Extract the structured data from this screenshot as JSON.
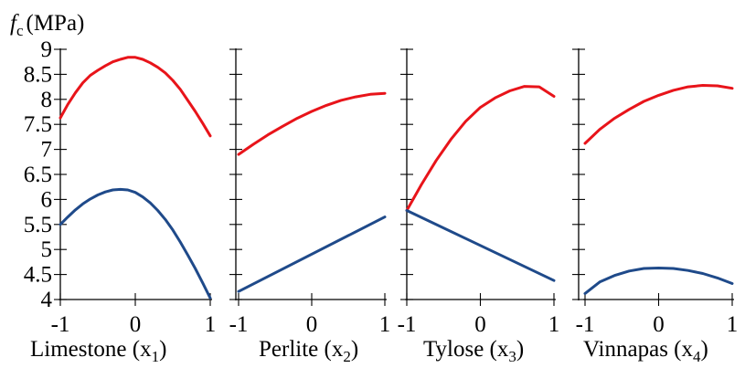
{
  "chart_data": {
    "type": "line",
    "ylabel_prefix": "f",
    "ylabel_sub": "c",
    "ylabel_unit": "(MPa)",
    "ylim": [
      4,
      9
    ],
    "yticks": [
      "4",
      "4.5",
      "5",
      "5.5",
      "6",
      "6.5",
      "7",
      "7.5",
      "8",
      "8.5",
      "9"
    ],
    "xlim": [
      -1,
      1
    ],
    "xticks": [
      "-1",
      "0",
      "1"
    ],
    "grid": false,
    "series_colors": [
      "#e8141a",
      "#1f4a8a"
    ],
    "panels": [
      {
        "title": "Limestone (x",
        "sub": "1",
        "title_end": ")",
        "series": [
          {
            "color": "red",
            "x": [
              -1,
              -0.9,
              -0.8,
              -0.7,
              -0.6,
              -0.5,
              -0.4,
              -0.3,
              -0.2,
              -0.1,
              0,
              0.1,
              0.2,
              0.3,
              0.4,
              0.5,
              0.6,
              0.7,
              0.8,
              0.9,
              1
            ],
            "y": [
              7.63,
              7.9,
              8.13,
              8.33,
              8.48,
              8.58,
              8.67,
              8.75,
              8.8,
              8.84,
              8.84,
              8.8,
              8.73,
              8.64,
              8.53,
              8.38,
              8.2,
              7.98,
              7.76,
              7.52,
              7.27
            ]
          },
          {
            "color": "blue",
            "x": [
              -1,
              -0.9,
              -0.8,
              -0.7,
              -0.6,
              -0.5,
              -0.4,
              -0.3,
              -0.2,
              -0.1,
              0,
              0.1,
              0.2,
              0.3,
              0.4,
              0.5,
              0.6,
              0.7,
              0.8,
              0.9,
              1
            ],
            "y": [
              5.5,
              5.65,
              5.79,
              5.91,
              6.01,
              6.09,
              6.15,
              6.19,
              6.2,
              6.19,
              6.14,
              6.05,
              5.93,
              5.78,
              5.6,
              5.39,
              5.15,
              4.89,
              4.62,
              4.33,
              4.03
            ]
          }
        ]
      },
      {
        "title": "Perlite (x",
        "sub": "2",
        "title_end": ")",
        "series": [
          {
            "color": "red",
            "x": [
              -1,
              -0.8,
              -0.6,
              -0.4,
              -0.2,
              0,
              0.2,
              0.4,
              0.6,
              0.8,
              1
            ],
            "y": [
              6.9,
              7.1,
              7.29,
              7.46,
              7.62,
              7.76,
              7.88,
              7.98,
              8.05,
              8.1,
              8.12
            ]
          },
          {
            "color": "blue",
            "x": [
              -1,
              1
            ],
            "y": [
              4.16,
              5.65
            ]
          }
        ]
      },
      {
        "title": "Tylose (x",
        "sub": "3",
        "title_end": ")",
        "series": [
          {
            "color": "red",
            "x": [
              -1,
              -0.8,
              -0.6,
              -0.4,
              -0.2,
              0,
              0.2,
              0.4,
              0.6,
              0.8,
              1
            ],
            "y": [
              5.78,
              6.3,
              6.78,
              7.2,
              7.56,
              7.84,
              8.03,
              8.17,
              8.26,
              8.25,
              8.06
            ]
          },
          {
            "color": "blue",
            "x": [
              -1,
              1
            ],
            "y": [
              5.78,
              4.38
            ]
          }
        ]
      },
      {
        "title": "Vinnapas (x",
        "sub": "4",
        "title_end": ")",
        "series": [
          {
            "color": "red",
            "x": [
              -1,
              -0.8,
              -0.6,
              -0.4,
              -0.2,
              0,
              0.2,
              0.4,
              0.6,
              0.8,
              1
            ],
            "y": [
              7.12,
              7.4,
              7.62,
              7.8,
              7.96,
              8.08,
              8.18,
              8.25,
              8.28,
              8.27,
              8.22
            ]
          },
          {
            "color": "blue",
            "x": [
              -1,
              -0.8,
              -0.6,
              -0.4,
              -0.2,
              0,
              0.2,
              0.4,
              0.6,
              0.8,
              1
            ],
            "y": [
              4.12,
              4.35,
              4.48,
              4.57,
              4.62,
              4.63,
              4.62,
              4.58,
              4.52,
              4.43,
              4.32
            ]
          }
        ]
      }
    ]
  }
}
